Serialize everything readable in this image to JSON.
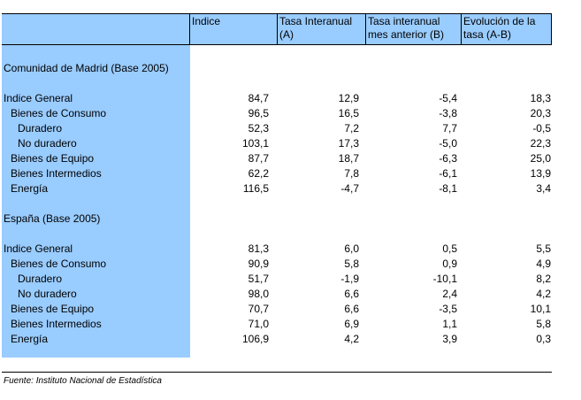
{
  "header": {
    "col1": "Indice",
    "col2_line1": "Tasa Interanual",
    "col2_line2": "(A)",
    "col3_line1": "Tasa interanual",
    "col3_line2": "mes anterior (B)",
    "col4_line1": "Evolución de la",
    "col4_line2": "tasa (A-B)"
  },
  "madrid": {
    "title": "Comunidad de Madrid (Base 2005)",
    "rows": [
      {
        "label": "Indice General",
        "indice": "84,7",
        "a": "12,9",
        "b": "-5,4",
        "ab": "18,3"
      },
      {
        "label": "Bienes de Consumo",
        "indice": "96,5",
        "a": "16,5",
        "b": "-3,8",
        "ab": "20,3"
      },
      {
        "label": "Duradero",
        "indice": "52,3",
        "a": "7,2",
        "b": "7,7",
        "ab": "-0,5"
      },
      {
        "label": "No duradero",
        "indice": "103,1",
        "a": "17,3",
        "b": "-5,0",
        "ab": "22,3"
      },
      {
        "label": "Bienes de Equipo",
        "indice": "87,7",
        "a": "18,7",
        "b": "-6,3",
        "ab": "25,0"
      },
      {
        "label": "Bienes Intermedios",
        "indice": "62,2",
        "a": "7,8",
        "b": "-6,1",
        "ab": "13,9"
      },
      {
        "label": "Energía",
        "indice": "116,5",
        "a": "-4,7",
        "b": "-8,1",
        "ab": "3,4"
      }
    ]
  },
  "espana": {
    "title": "España (Base 2005)",
    "rows": [
      {
        "label": "Indice General",
        "indice": "81,3",
        "a": "6,0",
        "b": "0,5",
        "ab": "5,5"
      },
      {
        "label": "Bienes de Consumo",
        "indice": "90,9",
        "a": "5,8",
        "b": "0,9",
        "ab": "4,9"
      },
      {
        "label": "Duradero",
        "indice": "51,7",
        "a": "-1,9",
        "b": "-10,1",
        "ab": "8,2"
      },
      {
        "label": "No duradero",
        "indice": "98,0",
        "a": "6,6",
        "b": "2,4",
        "ab": "4,2"
      },
      {
        "label": "Bienes de Equipo",
        "indice": "70,7",
        "a": "6,6",
        "b": "-3,5",
        "ab": "10,1"
      },
      {
        "label": "Bienes Intermedios",
        "indice": "71,0",
        "a": "6,9",
        "b": "1,1",
        "ab": "5,8"
      },
      {
        "label": "Energía",
        "indice": "106,9",
        "a": "4,2",
        "b": "3,9",
        "ab": "0,3"
      }
    ]
  },
  "source": "Fuente: Instituto Nacional de Estadística",
  "colors": {
    "header_bg": "#99ccff",
    "label_col_bg": "#99ccff"
  }
}
